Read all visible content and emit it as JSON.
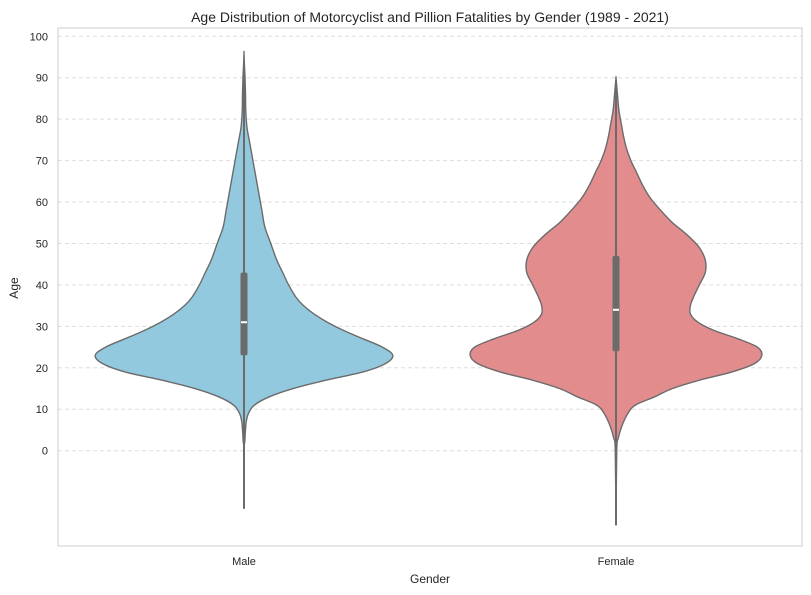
{
  "chart_data": {
    "type": "violin",
    "title": "Age Distribution of Motorcyclist and Pillion Fatalities by Gender (1989 - 2021)",
    "xlabel": "Gender",
    "ylabel": "Age",
    "categories": [
      "Male",
      "Female"
    ],
    "y_ticks": [
      0,
      10,
      20,
      30,
      40,
      50,
      60,
      70,
      80,
      90,
      100
    ],
    "ylim": [
      -23,
      102
    ],
    "grid": "y-dashed",
    "series": [
      {
        "color": "#92c9de",
        "range": [
          -14,
          96
        ],
        "whisker": [
          2,
          73
        ],
        "quartiles": [
          23,
          31,
          43
        ],
        "density": [
          [
            -14,
            0.0
          ],
          [
            0,
            0.0
          ],
          [
            2,
            0.005
          ],
          [
            5,
            0.01
          ],
          [
            7,
            0.015
          ],
          [
            9,
            0.03
          ],
          [
            11,
            0.07
          ],
          [
            13,
            0.17
          ],
          [
            15,
            0.33
          ],
          [
            17,
            0.55
          ],
          [
            19,
            0.8
          ],
          [
            21,
            0.95
          ],
          [
            23,
            1.0
          ],
          [
            25,
            0.93
          ],
          [
            27,
            0.8
          ],
          [
            29,
            0.67
          ],
          [
            31,
            0.56
          ],
          [
            33,
            0.47
          ],
          [
            35,
            0.4
          ],
          [
            37,
            0.35
          ],
          [
            40,
            0.3
          ],
          [
            43,
            0.26
          ],
          [
            46,
            0.22
          ],
          [
            50,
            0.18
          ],
          [
            54,
            0.14
          ],
          [
            58,
            0.12
          ],
          [
            62,
            0.1
          ],
          [
            66,
            0.08
          ],
          [
            70,
            0.06
          ],
          [
            74,
            0.04
          ],
          [
            78,
            0.02
          ],
          [
            82,
            0.012
          ],
          [
            86,
            0.01
          ],
          [
            90,
            0.007
          ],
          [
            93,
            0.003
          ],
          [
            96,
            0.0
          ]
        ]
      },
      {
        "color": "#e28c8e",
        "range": [
          -18,
          90
        ],
        "whisker": [
          -11,
          81
        ],
        "quartiles": [
          24,
          34,
          47
        ],
        "density": [
          [
            -18,
            0.0
          ],
          [
            0,
            0.005
          ],
          [
            3,
            0.015
          ],
          [
            6,
            0.04
          ],
          [
            9,
            0.08
          ],
          [
            11,
            0.13
          ],
          [
            13,
            0.26
          ],
          [
            15,
            0.38
          ],
          [
            17,
            0.56
          ],
          [
            19,
            0.78
          ],
          [
            21,
            0.93
          ],
          [
            23,
            0.98
          ],
          [
            25,
            0.95
          ],
          [
            27,
            0.82
          ],
          [
            29,
            0.66
          ],
          [
            31,
            0.55
          ],
          [
            33,
            0.5
          ],
          [
            35,
            0.5
          ],
          [
            37,
            0.52
          ],
          [
            40,
            0.56
          ],
          [
            43,
            0.6
          ],
          [
            46,
            0.6
          ],
          [
            49,
            0.56
          ],
          [
            52,
            0.48
          ],
          [
            55,
            0.38
          ],
          [
            58,
            0.3
          ],
          [
            61,
            0.23
          ],
          [
            64,
            0.18
          ],
          [
            67,
            0.14
          ],
          [
            70,
            0.1
          ],
          [
            73,
            0.07
          ],
          [
            76,
            0.05
          ],
          [
            79,
            0.035
          ],
          [
            82,
            0.02
          ],
          [
            85,
            0.012
          ],
          [
            88,
            0.005
          ],
          [
            90,
            0.0
          ]
        ]
      }
    ]
  }
}
